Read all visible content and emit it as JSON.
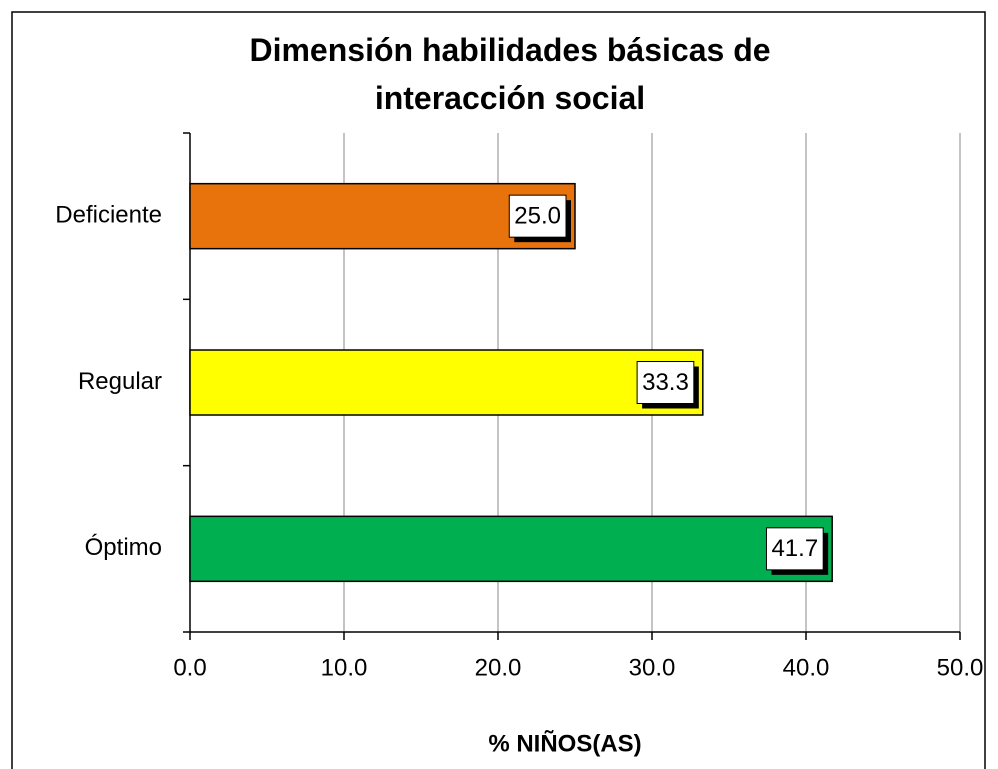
{
  "chart_data": {
    "type": "barh",
    "title": "Dimensión habilidades básicas de interacción social",
    "categories": [
      "Deficiente",
      "Regular",
      "Óptimo"
    ],
    "values": [
      25.0,
      33.3,
      41.7
    ],
    "value_labels": [
      "25.0",
      "33.3",
      "41.7"
    ],
    "colors": [
      "#E8720C",
      "#FFFF00",
      "#00B050"
    ],
    "xlabel": "% NIÑOS(AS)",
    "xlim": [
      0,
      50
    ],
    "xticks": [
      {
        "value": 0,
        "label": "0.0"
      },
      {
        "value": 10,
        "label": "10.0"
      },
      {
        "value": 20,
        "label": "20.0"
      },
      {
        "value": 30,
        "label": "30.0"
      },
      {
        "value": 40,
        "label": "40.0"
      },
      {
        "value": 50,
        "label": "50.0"
      }
    ],
    "grid": true
  }
}
